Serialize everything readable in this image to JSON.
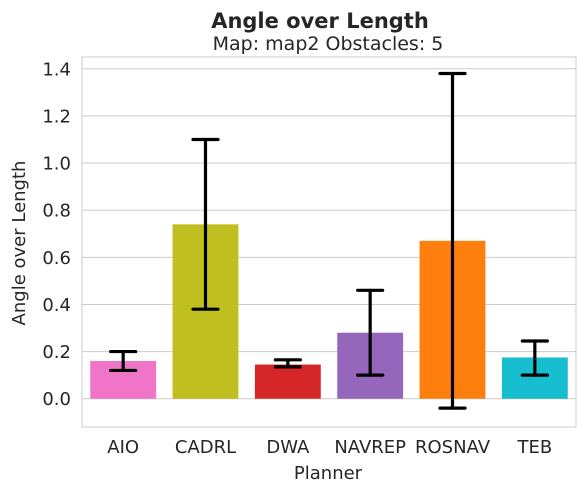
{
  "chart_data": {
    "type": "bar",
    "title": "Angle over Length",
    "subtitle": "Map: map2 Obstacles: 5",
    "xlabel": "Planner",
    "ylabel": "Angle over Length",
    "categories": [
      "AIO",
      "CADRL",
      "DWA",
      "NAVREP",
      "ROSNAV",
      "TEB"
    ],
    "values": [
      0.16,
      0.74,
      0.145,
      0.28,
      0.67,
      0.175
    ],
    "error_low": [
      0.12,
      0.38,
      0.135,
      0.1,
      -0.04,
      0.1
    ],
    "error_high": [
      0.2,
      1.1,
      0.165,
      0.46,
      1.38,
      0.245
    ],
    "colors": [
      "#f075c8",
      "#bfbf1f",
      "#d62728",
      "#9467bd",
      "#ff7f0e",
      "#17becf"
    ],
    "ylim": [
      -0.12,
      1.45
    ],
    "yticks": [
      "0.0",
      "0.2",
      "0.4",
      "0.6",
      "0.8",
      "1.0",
      "1.2",
      "1.4"
    ],
    "grid": "horizontal",
    "legend": "none"
  }
}
